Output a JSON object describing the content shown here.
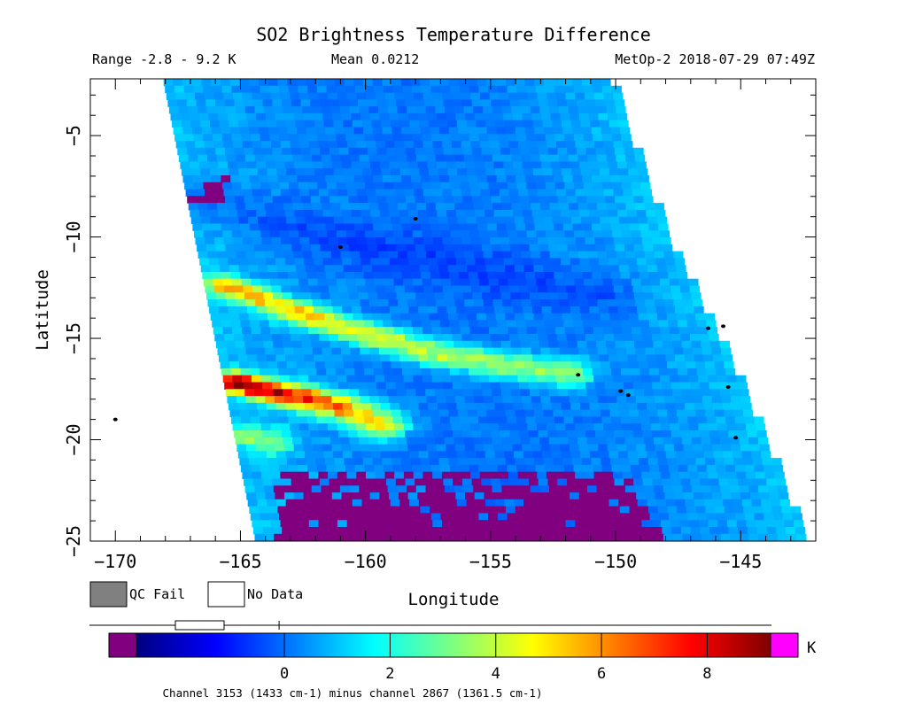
{
  "chart_data": {
    "type": "heatmap",
    "title": "SO2 Brightness Temperature Difference",
    "range_text": "Range -2.8 - 9.2 K",
    "mean_text": "Mean 0.0212",
    "source_text": "MetOp-2 2018-07-29 07:49Z",
    "xlabel": "Longitude",
    "ylabel": "Latitude",
    "xlim": [
      -171,
      -142
    ],
    "ylim": [
      -25,
      -2.2
    ],
    "xticks": [
      -170,
      -165,
      -160,
      -155,
      -150,
      -145
    ],
    "yticks": [
      -5,
      -10,
      -15,
      -20,
      -25
    ],
    "xtick_labels": [
      "−170",
      "−165",
      "−160",
      "−155",
      "−150",
      "−145"
    ],
    "ytick_labels": [
      "−5",
      "−10",
      "−15",
      "−20",
      "−25"
    ],
    "swath": {
      "left_edge": [
        [
          -168.1,
          -2.2
        ],
        [
          -164.4,
          -25
        ]
      ],
      "right_edge": [
        [
          -150.3,
          -2.2
        ],
        [
          -148.0,
          -10
        ],
        [
          -145.5,
          -16
        ],
        [
          -142.4,
          -25
        ]
      ]
    },
    "background_value": 0.1,
    "features": [
      {
        "name": "upper plume",
        "path": [
          [
            -165.6,
            -12.4
          ],
          [
            -163,
            -13.6
          ],
          [
            -160,
            -14.8
          ],
          [
            -157,
            -15.8
          ],
          [
            -154,
            -16.4
          ],
          [
            -151.5,
            -16.8
          ]
        ],
        "peak": 5.2,
        "tail": 3.0
      },
      {
        "name": "lower plume",
        "path": [
          [
            -165.2,
            -17.2
          ],
          [
            -163,
            -17.8
          ],
          [
            -161,
            -18.4
          ],
          [
            -159,
            -19.4
          ]
        ],
        "peak": 9.0,
        "tail": 4.2
      },
      {
        "name": "southern edge",
        "path": [
          [
            -164.8,
            -19.8
          ],
          [
            -163.5,
            -20.2
          ]
        ],
        "peak": 2.8,
        "tail": 2.2
      }
    ],
    "qc_fail_region": "lat < -21.5, lon -163.5 to -148.5 (purple)",
    "legend": {
      "qc_fail": "QC Fail",
      "no_data": "No Data"
    },
    "colorbar": {
      "min": -2.8,
      "max": 9.2,
      "ticks": [
        0,
        2,
        4,
        6,
        8
      ],
      "unit": "K",
      "under_color": "#800080",
      "over_color": "#ff00ff",
      "stops": [
        "#00007f",
        "#0000ff",
        "#007fff",
        "#00ffff",
        "#7fff7f",
        "#ffff00",
        "#ff7f00",
        "#ff0000",
        "#7f0000"
      ],
      "box_center": -0.1
    },
    "caption": "Channel 3153 (1433 cm-1) minus channel 2867 (1361.5 cm-1)"
  }
}
